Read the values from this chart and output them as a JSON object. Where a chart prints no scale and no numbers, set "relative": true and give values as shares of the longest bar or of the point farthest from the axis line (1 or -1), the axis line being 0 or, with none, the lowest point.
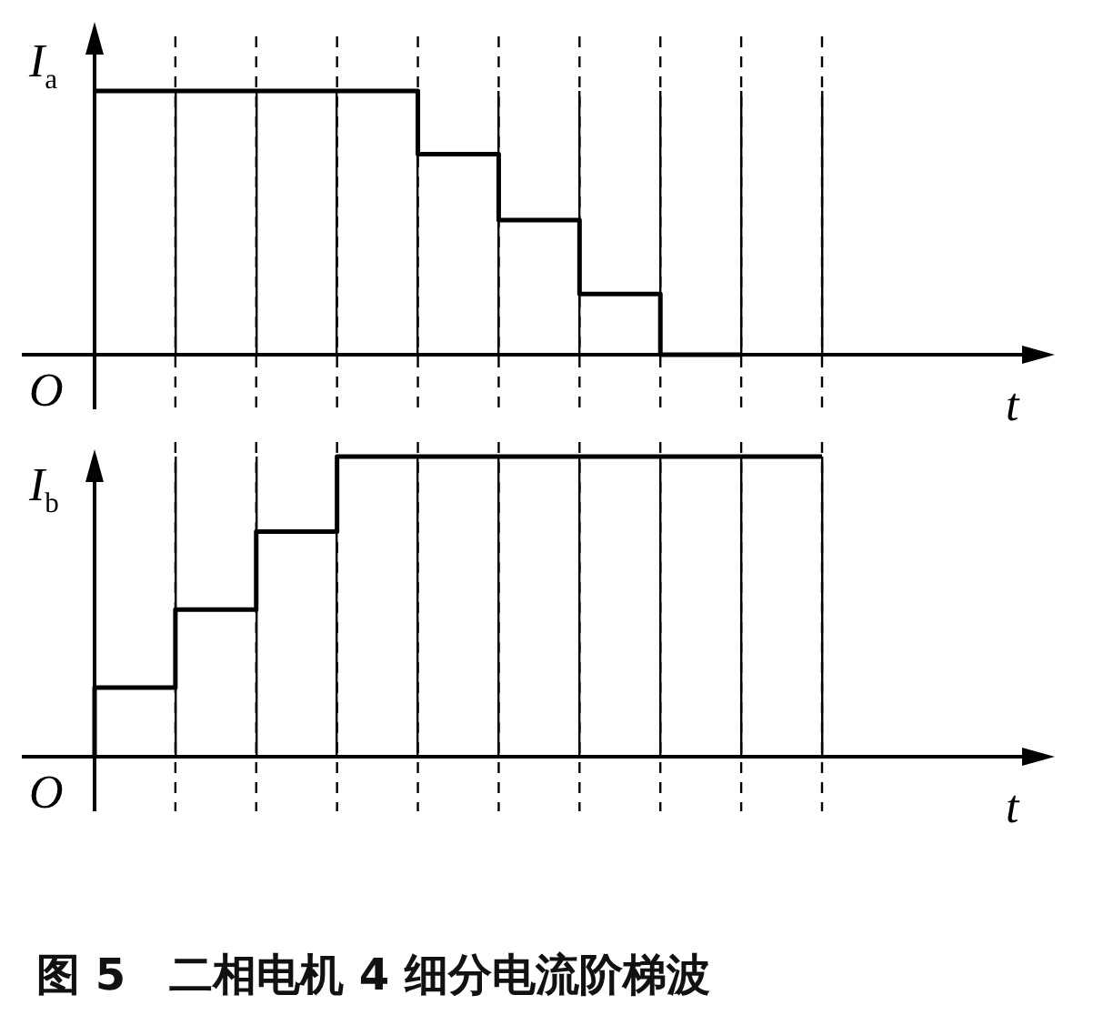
{
  "chart_data": [
    {
      "type": "step",
      "ylabel": "I$_{a}$",
      "xlabel": "t",
      "annotations": [
        "O"
      ],
      "relative": true,
      "grid": "x",
      "categories": [
        null,
        null,
        null,
        null,
        null,
        null,
        null,
        null,
        null,
        null
      ],
      "series": [
        {
          "color": "#000000",
          "values": [
            1,
            1,
            1,
            1,
            1,
            0.76,
            0.51,
            0.23,
            0,
            null
          ]
        }
      ]
    },
    {
      "type": "step",
      "ylabel": "I$_{b}$",
      "xlabel": "t",
      "annotations": [
        "O",
        "图 5　二相电机 4 细分电流阶梯波"
      ],
      "relative": true,
      "grid": "x",
      "categories": [
        null,
        null,
        null,
        null,
        null,
        null,
        null,
        null,
        null,
        null
      ],
      "series": [
        {
          "color": "#000000",
          "values": [
            0,
            0.23,
            0.49,
            0.75,
            1,
            1,
            1,
            1,
            1,
            1
          ]
        }
      ]
    }
  ]
}
